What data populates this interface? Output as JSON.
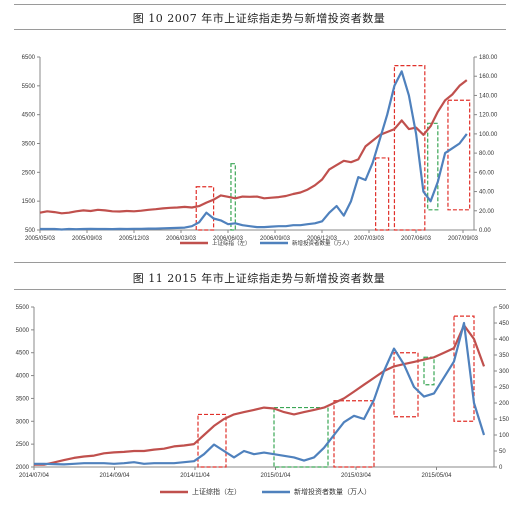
{
  "charts": [
    {
      "title": "图 10    2007 年市上证综指走势与新增投资者数量"
    },
    {
      "title": "图 11    2015 年市上证综指走势与新增投资者数量"
    }
  ],
  "chart_data": [
    {
      "type": "line",
      "title": "图 10    2007 年市上证综指走势与新增投资者数量",
      "x_ticks": [
        "2005/05/03",
        "2005/09/03",
        "2005/12/03",
        "2006/03/03",
        "2006/06/03",
        "2006/09/03",
        "2006/12/03",
        "2007/03/03",
        "2007/06/03",
        "2007/09/03"
      ],
      "y_left": {
        "ticks": [
          500,
          1500,
          2500,
          3500,
          4500,
          5500,
          6500
        ],
        "ylim": [
          500,
          6500
        ]
      },
      "y_right": {
        "ticks": [
          "0.00",
          "20.00",
          "40.00",
          "60.00",
          "80.00",
          "100.00",
          "120.00",
          "140.00",
          "160.00",
          "180.00"
        ],
        "ylim": [
          0,
          180
        ]
      },
      "legend": "bottom",
      "series": [
        {
          "name": "上证综指（左）",
          "axis": "left",
          "color": "#c0504d",
          "x": [
            0,
            0.5,
            1,
            1.5,
            2,
            2.5,
            3,
            3.5,
            4,
            4.5,
            5,
            5.5,
            6,
            6.5,
            7,
            7.5,
            8,
            8.5,
            9,
            9.5,
            10,
            10.5,
            11,
            11.5,
            12,
            12.5,
            13,
            13.5,
            14,
            14.5,
            15,
            15.5,
            16,
            16.5,
            17,
            17.5,
            18,
            18.5,
            19,
            19.5,
            20,
            20.5,
            21,
            21.5,
            22,
            22.5,
            23,
            23.5,
            24,
            24.5,
            25,
            25.5,
            26,
            26.5,
            27,
            27.5,
            28,
            28.5,
            29,
            29.5
          ],
          "values": [
            1100,
            1150,
            1120,
            1080,
            1100,
            1150,
            1180,
            1160,
            1200,
            1180,
            1150,
            1140,
            1160,
            1150,
            1170,
            1200,
            1220,
            1250,
            1270,
            1280,
            1300,
            1280,
            1330,
            1450,
            1550,
            1700,
            1650,
            1600,
            1660,
            1650,
            1660,
            1600,
            1620,
            1640,
            1680,
            1750,
            1800,
            1900,
            2050,
            2250,
            2600,
            2750,
            2900,
            2850,
            2950,
            3400,
            3600,
            3800,
            3900,
            4000,
            4300,
            4000,
            4050,
            3800,
            4100,
            4600,
            5000,
            5200,
            5500,
            5700
          ]
        },
        {
          "name": "新增投资者数量（万人）",
          "axis": "right",
          "color": "#4f81bd",
          "x": [
            0,
            0.5,
            1,
            1.5,
            2,
            2.5,
            3,
            3.5,
            4,
            4.5,
            5,
            5.5,
            6,
            6.5,
            7,
            7.5,
            8,
            8.5,
            9,
            9.5,
            10,
            10.5,
            11,
            11.5,
            12,
            12.5,
            13,
            13.5,
            14,
            14.5,
            15,
            15.5,
            16,
            16.5,
            17,
            17.5,
            18,
            18.5,
            19,
            19.5,
            20,
            20.5,
            21,
            21.5,
            22,
            22.5,
            23,
            23.5,
            24,
            24.5,
            25,
            25.5,
            26,
            26.5,
            27,
            27.5,
            28,
            28.5,
            29,
            29.5
          ],
          "values": [
            1,
            1,
            1,
            0.5,
            1,
            0.8,
            1,
            1.2,
            1,
            1,
            0.9,
            1.1,
            1,
            1.2,
            1.3,
            1.5,
            1.5,
            1.8,
            2,
            2.2,
            2.5,
            4,
            8,
            18,
            12,
            10,
            6,
            7,
            5,
            4,
            3,
            3,
            3.5,
            4,
            4,
            5,
            5,
            6,
            7,
            9,
            18,
            25,
            15,
            30,
            55,
            52,
            70,
            95,
            120,
            150,
            165,
            140,
            100,
            40,
            30,
            50,
            80,
            85,
            90,
            100
          ]
        }
      ],
      "highlights": [
        {
          "style": "red-dashed",
          "x_range": [
            10.8,
            12.0
          ],
          "y_range": [
            500,
            2000
          ]
        },
        {
          "style": "green-dashed",
          "x_range": [
            13.2,
            13.5
          ],
          "y_range": [
            500,
            2800
          ]
        },
        {
          "style": "red-dashed",
          "x_range": [
            23.2,
            24.1
          ],
          "y_range": [
            500,
            3000
          ]
        },
        {
          "style": "red-dashed",
          "x_range": [
            24.5,
            26.6
          ],
          "y_range": [
            500,
            6200
          ]
        },
        {
          "style": "green-dashed",
          "x_range": [
            26.8,
            27.5
          ],
          "y_range": [
            1200,
            4200
          ]
        },
        {
          "style": "red-dashed",
          "x_range": [
            28.2,
            29.7
          ],
          "y_range": [
            1200,
            5000
          ]
        }
      ]
    },
    {
      "type": "line",
      "title": "图 11    2015 年市上证综指走势与新增投资者数量",
      "x_ticks": [
        "2014/07/04",
        "2014/09/04",
        "2014/11/04",
        "2015/01/04",
        "2015/03/04",
        "2015/05/04"
      ],
      "y_left": {
        "ticks": [
          2000,
          2500,
          3000,
          3500,
          4000,
          4500,
          5000,
          5500
        ],
        "ylim": [
          2000,
          5500
        ]
      },
      "y_right": {
        "ticks": [
          0,
          50,
          100,
          150,
          200,
          250,
          300,
          350,
          400,
          450,
          500
        ],
        "ylim": [
          0,
          500
        ]
      },
      "legend": "bottom",
      "series": [
        {
          "name": "上证综指（左）",
          "axis": "left",
          "color": "#c0504d",
          "x": [
            0,
            0.5,
            1,
            1.5,
            2,
            2.5,
            3,
            3.5,
            4,
            4.5,
            5,
            5.5,
            6,
            6.5,
            7,
            7.5,
            8,
            8.5,
            9,
            9.5,
            10,
            10.5,
            11,
            11.5,
            12,
            12.5,
            13,
            13.5,
            14,
            14.5,
            15,
            15.5,
            16,
            16.5,
            17,
            17.5,
            18,
            18.5,
            19,
            19.5,
            20,
            20.5,
            21,
            21.5,
            22,
            22.5
          ],
          "values": [
            2050,
            2050,
            2100,
            2150,
            2200,
            2230,
            2250,
            2300,
            2320,
            2330,
            2350,
            2350,
            2380,
            2400,
            2450,
            2470,
            2500,
            2700,
            2900,
            3050,
            3150,
            3200,
            3250,
            3300,
            3280,
            3200,
            3150,
            3200,
            3250,
            3300,
            3400,
            3500,
            3650,
            3800,
            3950,
            4100,
            4200,
            4250,
            4300,
            4350,
            4400,
            4500,
            4600,
            5100,
            4800,
            4200
          ]
        },
        {
          "name": "新增投资者数量（万人）",
          "axis": "right",
          "color": "#4f81bd",
          "x": [
            0,
            0.5,
            1,
            1.5,
            2,
            2.5,
            3,
            3.5,
            4,
            4.5,
            5,
            5.5,
            6,
            6.5,
            7,
            7.5,
            8,
            8.5,
            9,
            9.5,
            10,
            10.5,
            11,
            11.5,
            12,
            12.5,
            13,
            13.5,
            14,
            14.5,
            15,
            15.5,
            16,
            16.5,
            17,
            17.5,
            18,
            18.5,
            19,
            19.5,
            20,
            20.5,
            21,
            21.5,
            22,
            22.5
          ],
          "values": [
            10,
            10,
            9,
            8,
            10,
            12,
            12,
            12,
            10,
            12,
            15,
            10,
            12,
            12,
            12,
            15,
            18,
            40,
            70,
            50,
            30,
            50,
            40,
            45,
            40,
            35,
            30,
            20,
            30,
            60,
            100,
            140,
            160,
            150,
            210,
            300,
            370,
            320,
            250,
            220,
            230,
            280,
            330,
            450,
            200,
            100
          ]
        }
      ],
      "highlights": [
        {
          "style": "red-dashed",
          "x_range": [
            8.2,
            9.6
          ],
          "y_range": [
            2000,
            3150
          ]
        },
        {
          "style": "green-dashed",
          "x_range": [
            12.0,
            14.7
          ],
          "y_range": [
            2000,
            3300
          ]
        },
        {
          "style": "red-dashed",
          "x_range": [
            15.0,
            17.0
          ],
          "y_range": [
            2000,
            3450
          ]
        },
        {
          "style": "red-dashed",
          "x_range": [
            18.0,
            19.2
          ],
          "y_range": [
            3100,
            4500
          ]
        },
        {
          "style": "green-dashed",
          "x_range": [
            19.5,
            20.0
          ],
          "y_range": [
            3800,
            4400
          ]
        },
        {
          "style": "red-dashed",
          "x_range": [
            21.0,
            22.0
          ],
          "y_range": [
            3000,
            5300
          ]
        }
      ]
    }
  ]
}
